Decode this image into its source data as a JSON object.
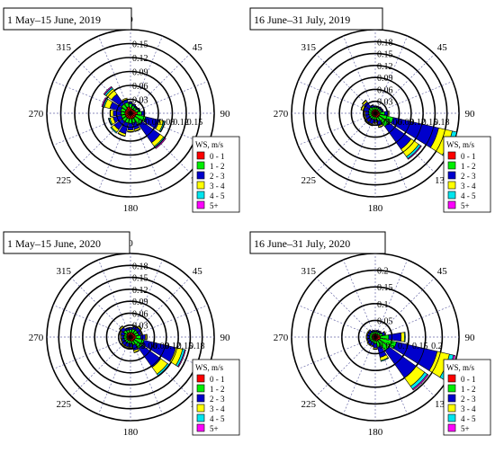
{
  "legend_title": "WS, m/s",
  "speed_bins": [
    "0 - 1",
    "1 - 2",
    "2 - 3",
    "3 - 4",
    "4 - 5",
    "5+"
  ],
  "bin_colors": [
    "#ff0000",
    "#00ee00",
    "#0000cc",
    "#ffff00",
    "#00e5ee",
    "#ff00ff"
  ],
  "compass_labels": [
    "0",
    "45",
    "90",
    "135",
    "180",
    "225",
    "270",
    "315"
  ],
  "chart_data": [
    {
      "type": "windrose",
      "title": "1 May–15 June, 2019",
      "rmax": 0.15,
      "ring_ticks": [
        "0.03",
        "0.06",
        "0.09",
        "0.12",
        "0.15"
      ],
      "ring_values": [
        0.03,
        0.06,
        0.09,
        0.12,
        0.15
      ],
      "directions_deg": [
        0,
        22.5,
        45,
        67.5,
        90,
        112.5,
        135,
        157.5,
        180,
        202.5,
        225,
        247.5,
        270,
        292.5,
        315,
        337.5
      ],
      "frequencies": [
        [
          0.01,
          0.007,
          0.003,
          0.001,
          0.0,
          0.0
        ],
        [
          0.008,
          0.006,
          0.003,
          0.001,
          0.0,
          0.0
        ],
        [
          0.008,
          0.005,
          0.002,
          0.001,
          0.0,
          0.0
        ],
        [
          0.009,
          0.006,
          0.002,
          0.001,
          0.0,
          0.0
        ],
        [
          0.012,
          0.008,
          0.004,
          0.001,
          0.0,
          0.0
        ],
        [
          0.01,
          0.018,
          0.025,
          0.008,
          0.002,
          0.001
        ],
        [
          0.01,
          0.015,
          0.04,
          0.008,
          0.003,
          0.002
        ],
        [
          0.01,
          0.008,
          0.012,
          0.003,
          0.001,
          0.0
        ],
        [
          0.01,
          0.008,
          0.012,
          0.003,
          0.001,
          0.0
        ],
        [
          0.01,
          0.008,
          0.02,
          0.004,
          0.001,
          0.0
        ],
        [
          0.01,
          0.008,
          0.018,
          0.006,
          0.002,
          0.0
        ],
        [
          0.01,
          0.007,
          0.015,
          0.006,
          0.002,
          0.001
        ],
        [
          0.01,
          0.007,
          0.014,
          0.005,
          0.001,
          0.0
        ],
        [
          0.01,
          0.008,
          0.02,
          0.01,
          0.003,
          0.002
        ],
        [
          0.01,
          0.01,
          0.022,
          0.012,
          0.003,
          0.002
        ],
        [
          0.012,
          0.008,
          0.006,
          0.002,
          0.0,
          0.0
        ]
      ]
    },
    {
      "type": "windrose",
      "title": "16 June–31 July, 2019",
      "rmax": 0.18,
      "ring_ticks": [
        "0.03",
        "0.06",
        "0.09",
        "0.12",
        "0.15",
        "0.18"
      ],
      "ring_values": [
        0.03,
        0.06,
        0.09,
        0.12,
        0.15,
        0.18
      ],
      "directions_deg": [
        0,
        22.5,
        45,
        67.5,
        90,
        112.5,
        135,
        157.5,
        180,
        202.5,
        225,
        247.5,
        270,
        292.5,
        315,
        337.5
      ],
      "frequencies": [
        [
          0.008,
          0.005,
          0.002,
          0.001,
          0.0,
          0.0
        ],
        [
          0.008,
          0.005,
          0.002,
          0.001,
          0.0,
          0.0
        ],
        [
          0.008,
          0.005,
          0.003,
          0.001,
          0.0,
          0.0
        ],
        [
          0.008,
          0.006,
          0.003,
          0.001,
          0.0,
          0.0
        ],
        [
          0.01,
          0.01,
          0.008,
          0.002,
          0.0,
          0.0
        ],
        [
          0.01,
          0.03,
          0.1,
          0.03,
          0.01,
          0.003
        ],
        [
          0.01,
          0.025,
          0.06,
          0.02,
          0.005,
          0.002
        ],
        [
          0.01,
          0.008,
          0.01,
          0.003,
          0.001,
          0.0
        ],
        [
          0.008,
          0.006,
          0.006,
          0.002,
          0.0,
          0.0
        ],
        [
          0.008,
          0.006,
          0.01,
          0.003,
          0.001,
          0.0
        ],
        [
          0.008,
          0.006,
          0.01,
          0.003,
          0.001,
          0.0
        ],
        [
          0.008,
          0.006,
          0.008,
          0.002,
          0.0,
          0.0
        ],
        [
          0.008,
          0.006,
          0.008,
          0.002,
          0.0,
          0.0
        ],
        [
          0.008,
          0.007,
          0.012,
          0.004,
          0.001,
          0.0
        ],
        [
          0.008,
          0.008,
          0.014,
          0.004,
          0.001,
          0.0
        ],
        [
          0.008,
          0.006,
          0.004,
          0.001,
          0.0,
          0.0
        ]
      ]
    },
    {
      "type": "windrose",
      "title": "1 May–15 June, 2020",
      "rmax": 0.18,
      "ring_ticks": [
        "0.03",
        "0.06",
        "0.09",
        "0.12",
        "0.15",
        "0.18"
      ],
      "ring_values": [
        0.03,
        0.06,
        0.09,
        0.12,
        0.15,
        0.18
      ],
      "directions_deg": [
        0,
        22.5,
        45,
        67.5,
        90,
        112.5,
        135,
        157.5,
        180,
        202.5,
        225,
        247.5,
        270,
        292.5,
        315,
        337.5
      ],
      "frequencies": [
        [
          0.01,
          0.006,
          0.004,
          0.001,
          0.0,
          0.0
        ],
        [
          0.01,
          0.008,
          0.006,
          0.002,
          0.0,
          0.0
        ],
        [
          0.01,
          0.008,
          0.008,
          0.003,
          0.001,
          0.0
        ],
        [
          0.01,
          0.008,
          0.006,
          0.002,
          0.0,
          0.0
        ],
        [
          0.012,
          0.01,
          0.01,
          0.003,
          0.001,
          0.0
        ],
        [
          0.01,
          0.02,
          0.07,
          0.015,
          0.005,
          0.002
        ],
        [
          0.01,
          0.02,
          0.05,
          0.018,
          0.004,
          0.002
        ],
        [
          0.01,
          0.008,
          0.012,
          0.004,
          0.001,
          0.0
        ],
        [
          0.008,
          0.006,
          0.008,
          0.002,
          0.0,
          0.0
        ],
        [
          0.008,
          0.006,
          0.008,
          0.002,
          0.0,
          0.0
        ],
        [
          0.008,
          0.006,
          0.008,
          0.002,
          0.0,
          0.0
        ],
        [
          0.008,
          0.006,
          0.006,
          0.002,
          0.0,
          0.0
        ],
        [
          0.008,
          0.006,
          0.006,
          0.002,
          0.0,
          0.0
        ],
        [
          0.008,
          0.006,
          0.008,
          0.002,
          0.0,
          0.0
        ],
        [
          0.01,
          0.008,
          0.008,
          0.003,
          0.001,
          0.0
        ],
        [
          0.01,
          0.006,
          0.004,
          0.001,
          0.0,
          0.0
        ]
      ]
    },
    {
      "type": "windrose",
      "title": "16 June–31 July, 2020",
      "rmax": 0.2,
      "ring_ticks": [
        "0.05",
        "0.1",
        "0.15",
        "0.2"
      ],
      "ring_values": [
        0.05,
        0.1,
        0.15,
        0.2
      ],
      "directions_deg": [
        0,
        22.5,
        45,
        67.5,
        90,
        112.5,
        135,
        157.5,
        180,
        202.5,
        225,
        247.5,
        270,
        292.5,
        315,
        337.5
      ],
      "frequencies": [
        [
          0.008,
          0.005,
          0.002,
          0.001,
          0.0,
          0.0
        ],
        [
          0.008,
          0.005,
          0.003,
          0.001,
          0.0,
          0.0
        ],
        [
          0.008,
          0.006,
          0.003,
          0.001,
          0.0,
          0.0
        ],
        [
          0.01,
          0.008,
          0.006,
          0.002,
          0.0,
          0.0
        ],
        [
          0.012,
          0.02,
          0.03,
          0.008,
          0.002,
          0.0
        ],
        [
          0.012,
          0.04,
          0.1,
          0.03,
          0.01,
          0.004
        ],
        [
          0.01,
          0.03,
          0.08,
          0.025,
          0.008,
          0.003
        ],
        [
          0.01,
          0.015,
          0.025,
          0.008,
          0.002,
          0.0
        ],
        [
          0.008,
          0.008,
          0.01,
          0.003,
          0.001,
          0.0
        ],
        [
          0.008,
          0.006,
          0.008,
          0.002,
          0.0,
          0.0
        ],
        [
          0.008,
          0.006,
          0.008,
          0.002,
          0.0,
          0.0
        ],
        [
          0.008,
          0.006,
          0.006,
          0.002,
          0.0,
          0.0
        ],
        [
          0.008,
          0.006,
          0.006,
          0.002,
          0.0,
          0.0
        ],
        [
          0.008,
          0.006,
          0.006,
          0.002,
          0.0,
          0.0
        ],
        [
          0.008,
          0.006,
          0.006,
          0.002,
          0.0,
          0.0
        ],
        [
          0.008,
          0.005,
          0.003,
          0.001,
          0.0,
          0.0
        ]
      ]
    }
  ]
}
